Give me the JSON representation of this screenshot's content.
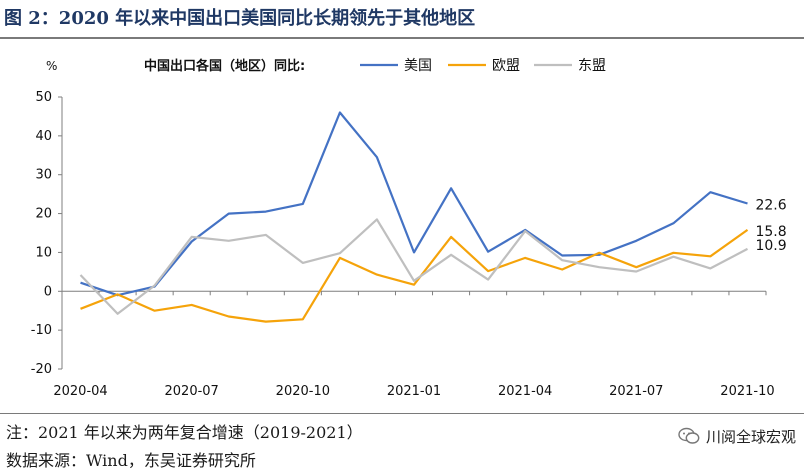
{
  "title": "图 2：2020 年以来中国出口美国同比长期领先于其他地区",
  "notes": {
    "note": "注：2021 年以来为两年复合增速（2019-2021）",
    "source": "数据来源：Wind，东吴证券研究所"
  },
  "watermark": "川阅全球宏观",
  "chart_data": {
    "type": "line",
    "legend_title": "中国出口各国（地区）同比:",
    "ylabel": "%",
    "ylim": [
      -20,
      50
    ],
    "yticks": [
      -20,
      -10,
      0,
      10,
      20,
      30,
      40,
      50
    ],
    "x": [
      "2020-04",
      "2020-05",
      "2020-06",
      "2020-07",
      "2020-08",
      "2020-09",
      "2020-10",
      "2020-11",
      "2020-12",
      "2021-01",
      "2021-02",
      "2021-03",
      "2021-04",
      "2021-05",
      "2021-06",
      "2021-07",
      "2021-08",
      "2021-09",
      "2021-10"
    ],
    "xtick_labels": [
      "2020-04",
      "2020-07",
      "2020-10",
      "2021-01",
      "2021-04",
      "2021-07",
      "2021-10"
    ],
    "legend_position": "top",
    "series": [
      {
        "name": "美国",
        "color": "#4472c4",
        "values": [
          2.2,
          -1.0,
          1.2,
          12.8,
          20.0,
          20.5,
          22.5,
          46.0,
          34.5,
          10.0,
          26.5,
          10.2,
          15.8,
          9.2,
          9.4,
          13.0,
          17.5,
          25.5,
          22.6
        ],
        "end_label": "22.6"
      },
      {
        "name": "欧盟",
        "color": "#f5a30a",
        "values": [
          -4.5,
          -0.8,
          -5.0,
          -3.5,
          -6.5,
          -7.8,
          -7.2,
          8.6,
          4.3,
          1.7,
          14.0,
          5.2,
          8.6,
          5.6,
          9.9,
          6.2,
          9.9,
          9.0,
          15.8
        ],
        "end_label": "15.8"
      },
      {
        "name": "东盟",
        "color": "#bfbfbf",
        "values": [
          4.2,
          -5.8,
          1.5,
          14.0,
          13.0,
          14.5,
          7.3,
          9.8,
          18.5,
          2.7,
          9.4,
          3.0,
          15.5,
          8.0,
          6.2,
          5.1,
          8.9,
          5.9,
          10.9
        ],
        "end_label": "10.9"
      }
    ]
  }
}
